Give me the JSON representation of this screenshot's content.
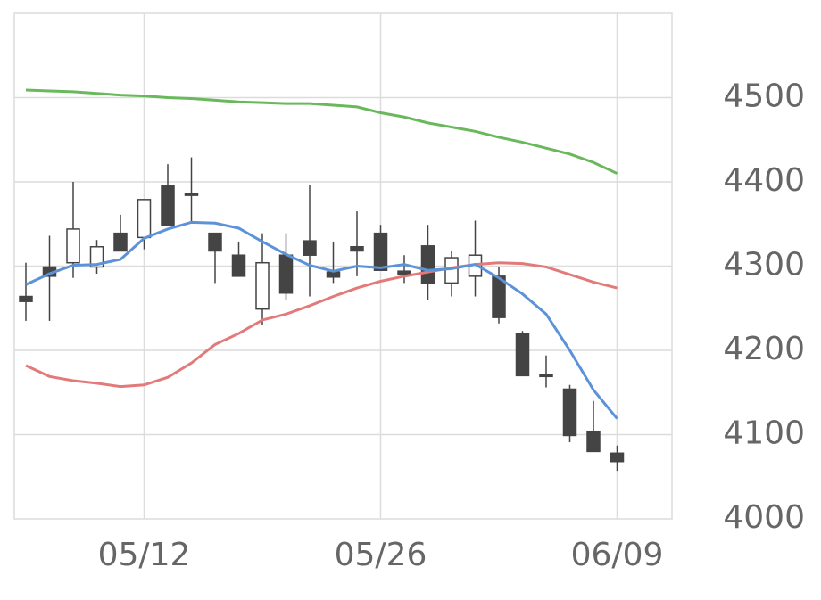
{
  "chart_data": {
    "type": "candlestick",
    "categories": [
      null,
      null,
      null,
      null,
      null,
      "05/12",
      null,
      null,
      null,
      null,
      null,
      null,
      null,
      null,
      null,
      "05/26",
      null,
      null,
      null,
      null,
      null,
      null,
      null,
      null,
      null,
      "06/09"
    ],
    "open": [
      4264,
      4299,
      4304,
      4299,
      4339,
      4334,
      4396,
      4386,
      4339,
      4313,
      4249,
      4313,
      4330,
      4293,
      4323,
      4339,
      4294,
      4324,
      4280,
      4288,
      4288,
      4220,
      4171,
      4154,
      4104,
      4078
    ],
    "high": [
      4304,
      4336,
      4400,
      4331,
      4361,
      4379,
      4421,
      4429,
      4339,
      4329,
      4339,
      4339,
      4396,
      4329,
      4365,
      4349,
      4313,
      4349,
      4318,
      4354,
      4299,
      4223,
      4194,
      4159,
      4140,
      4087
    ],
    "low": [
      4235,
      4235,
      4286,
      4291,
      4318,
      4320,
      4348,
      4352,
      4280,
      4288,
      4230,
      4260,
      4264,
      4280,
      4288,
      4295,
      4280,
      4260,
      4264,
      4264,
      4232,
      4170,
      4156,
      4091,
      4080,
      4057
    ],
    "close": [
      4258,
      4288,
      4344,
      4323,
      4318,
      4379,
      4348,
      4384,
      4318,
      4288,
      4304,
      4268,
      4313,
      4287,
      4318,
      4295,
      4290,
      4280,
      4310,
      4313,
      4239,
      4170,
      4169,
      4099,
      4080,
      4068
    ],
    "up_color": "#ffffff",
    "down_color": "#444444",
    "wick_color": "#444444",
    "lines": [
      {
        "color": "#6ab85c",
        "values": [
          4509,
          4508,
          4507,
          4505,
          4503,
          4502,
          4500,
          4499,
          4497,
          4495,
          4494,
          4493,
          4493,
          4491,
          4489,
          4482,
          4477,
          4470,
          4465,
          4460,
          4453,
          4447,
          4440,
          4433,
          4423,
          4410
        ]
      },
      {
        "color": "#e37a7a",
        "values": [
          4182,
          4169,
          4164,
          4161,
          4157,
          4159,
          4168,
          4185,
          4207,
          4220,
          4236,
          4243,
          4253,
          4264,
          4274,
          4282,
          4288,
          4293,
          4298,
          4302,
          4304,
          4303,
          4299,
          4290,
          4281,
          4274
        ]
      },
      {
        "color": "#5b92d8",
        "values": [
          4278,
          4291,
          4301,
          4302,
          4308,
          4333,
          4344,
          4352,
          4351,
          4345,
          4329,
          4314,
          4301,
          4294,
          4300,
          4298,
          4302,
          4295,
          4297,
          4302,
          4286,
          4267,
          4243,
          4200,
          4153,
          4119
        ]
      }
    ],
    "ylim": [
      4000,
      4600
    ],
    "yticks": [
      4000,
      4100,
      4200,
      4300,
      4400,
      4500
    ],
    "grid": true
  }
}
